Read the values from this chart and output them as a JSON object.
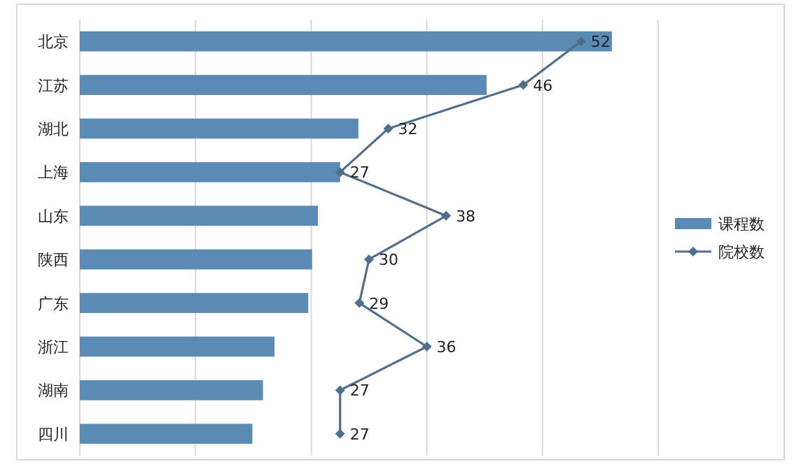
{
  "chart_data": {
    "type": "bar",
    "orientation": "horizontal",
    "categories": [
      "北京",
      "江苏",
      "湖北",
      "上海",
      "山东",
      "陕西",
      "广东",
      "浙江",
      "湖南",
      "四川"
    ],
    "series": [
      {
        "name": "课程数",
        "color": "#5a8bb5",
        "values": [
          55.2,
          42.2,
          28.9,
          27.0,
          24.7,
          24.1,
          23.7,
          20.2,
          19.0,
          17.9
        ]
      },
      {
        "name": "院校数",
        "type": "line",
        "color": "#4f6f8c",
        "values": [
          52,
          46,
          32,
          27,
          38,
          30,
          29,
          36,
          27,
          27
        ],
        "value_labels": [
          "52",
          "46",
          "32",
          "27",
          "38",
          "30",
          "29",
          "36",
          "27",
          "27"
        ]
      }
    ],
    "xlim": [
      0,
      60
    ],
    "grid": "x",
    "legend": "right",
    "marker": "diamond",
    "line_style": "solid",
    "tick_labels": "y"
  }
}
